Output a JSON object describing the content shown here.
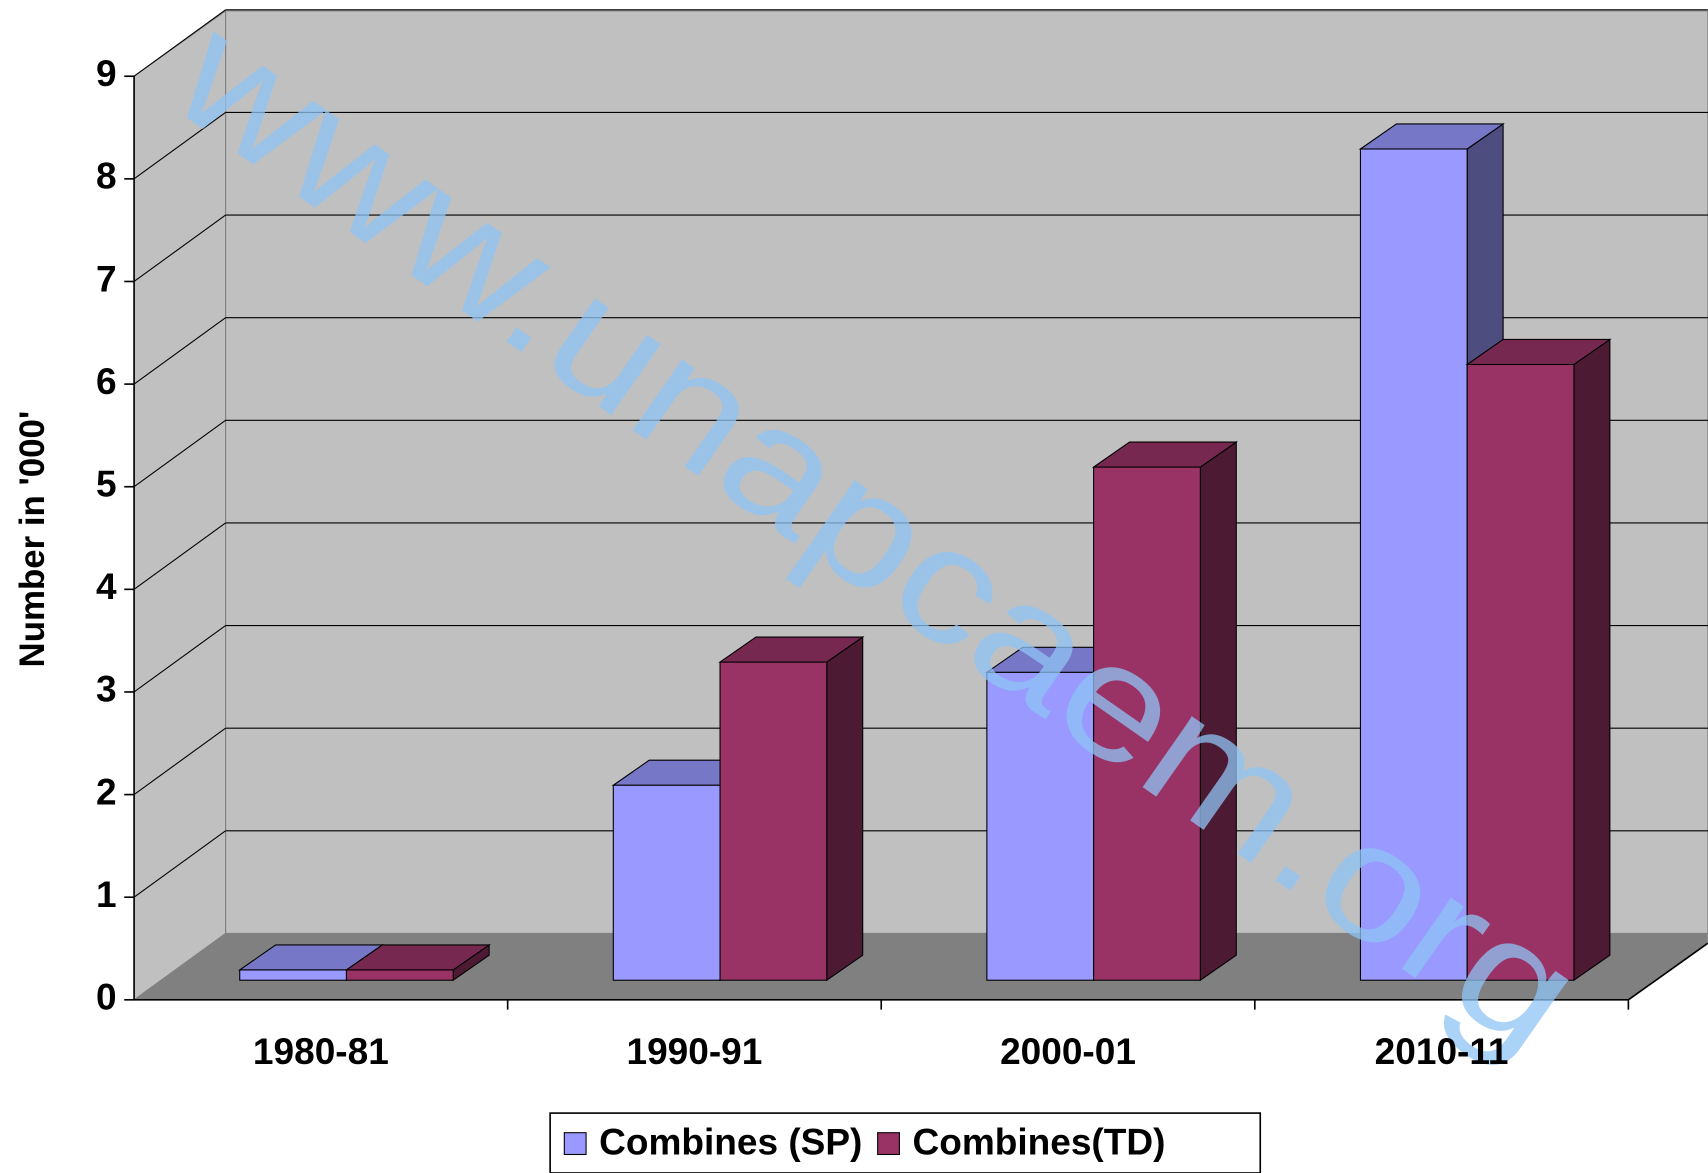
{
  "chart_data": {
    "type": "bar3d",
    "y_label": "Number in '000'",
    "watermark": "www.unapcaem.org",
    "categories": [
      "1980-81",
      "1990-91",
      "2000-01",
      "2010-11"
    ],
    "series": [
      {
        "name": "Combines (SP)",
        "color": "#9999ff",
        "values": [
          0.1,
          1.9,
          3.0,
          8.1
        ]
      },
      {
        "name": "Combines(TD)",
        "color": "#993366",
        "values": [
          0.1,
          3.1,
          5.0,
          6.0
        ]
      }
    ],
    "ylim": [
      0,
      9
    ],
    "yticks": [
      0,
      1,
      2,
      3,
      4,
      5,
      6,
      7,
      8,
      9
    ],
    "grid": true
  }
}
